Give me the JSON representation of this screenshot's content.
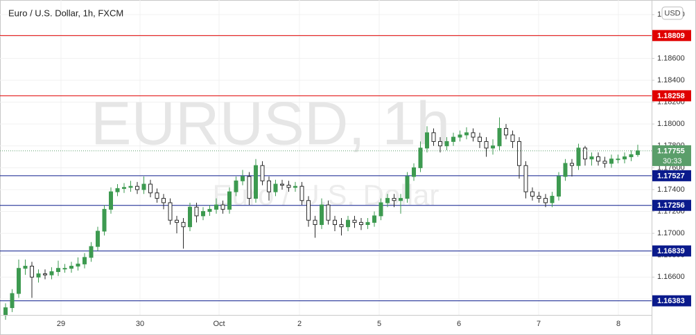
{
  "chart_data": {
    "type": "candlestick",
    "title": "Euro / U.S. Dollar, 1h, FXCM",
    "watermark": "EURUSD, 1h",
    "watermark_subtitle": "Euro / U.S. Dollar",
    "currency": "USD",
    "x_labels": [
      "29",
      "30",
      "Oct",
      "2",
      "5",
      "6",
      "7",
      "8"
    ],
    "open": [
      1.1625,
      1.1632,
      1.1645,
      1.1668,
      1.167,
      1.166,
      1.1663,
      1.1662,
      1.1665,
      1.1668,
      1.1668,
      1.167,
      1.1672,
      1.1678,
      1.1688,
      1.1702,
      1.1722,
      1.1738,
      1.1741,
      1.1742,
      1.1743,
      1.174,
      1.1745,
      1.1737,
      1.1732,
      1.1728,
      1.1712,
      1.171,
      1.1706,
      1.1724,
      1.1716,
      1.172,
      1.1722,
      1.1726,
      1.1722,
      1.1738,
      1.1748,
      1.1752,
      1.1732,
      1.1762,
      1.1748,
      1.1738,
      1.1745,
      1.1744,
      1.1742,
      1.1743,
      1.173,
      1.1712,
      1.1708,
      1.1726,
      1.1712,
      1.1708,
      1.1706,
      1.1712,
      1.171,
      1.1708,
      1.171,
      1.1716,
      1.1728,
      1.1732,
      1.173,
      1.1732,
      1.1752,
      1.176,
      1.1778,
      1.1792,
      1.1784,
      1.178,
      1.1784,
      1.1788,
      1.179,
      1.1792,
      1.1788,
      1.1784,
      1.1778,
      1.178,
      1.1796,
      1.179,
      1.1784,
      1.1762,
      1.1738,
      1.1734,
      1.1732,
      1.1728,
      1.1734,
      1.1752,
      1.1764,
      1.1762,
      1.1778,
      1.1768,
      1.177,
      1.1766,
      1.1764,
      1.1768,
      1.1768,
      1.177,
      1.1772
    ],
    "high": [
      1.1636,
      1.1649,
      1.1676,
      1.1676,
      1.1674,
      1.1667,
      1.1667,
      1.1669,
      1.1675,
      1.1672,
      1.1674,
      1.1678,
      1.1682,
      1.1692,
      1.1706,
      1.1726,
      1.1742,
      1.1745,
      1.1746,
      1.1748,
      1.1747,
      1.1752,
      1.1749,
      1.1741,
      1.1736,
      1.1732,
      1.1716,
      1.1714,
      1.1728,
      1.1728,
      1.1724,
      1.1726,
      1.1732,
      1.173,
      1.1742,
      1.1752,
      1.1758,
      1.1756,
      1.1768,
      1.1766,
      1.1752,
      1.1749,
      1.1749,
      1.1748,
      1.1747,
      1.1747,
      1.1734,
      1.1716,
      1.1732,
      1.173,
      1.1716,
      1.1714,
      1.1716,
      1.1716,
      1.1714,
      1.1714,
      1.172,
      1.1732,
      1.1736,
      1.1736,
      1.1736,
      1.1756,
      1.1764,
      1.1784,
      1.1798,
      1.1796,
      1.1788,
      1.1788,
      1.1792,
      1.1794,
      1.1797,
      1.1796,
      1.1792,
      1.1788,
      1.1786,
      1.1806,
      1.18,
      1.1794,
      1.1788,
      1.1766,
      1.1742,
      1.1738,
      1.1736,
      1.1738,
      1.1756,
      1.1768,
      1.1768,
      1.1782,
      1.178,
      1.1774,
      1.1774,
      1.177,
      1.1772,
      1.1772,
      1.1774,
      1.1776,
      1.1781
    ],
    "low": [
      1.1621,
      1.1628,
      1.1641,
      1.1662,
      1.1641,
      1.1655,
      1.1658,
      1.1658,
      1.1661,
      1.1664,
      1.1664,
      1.1666,
      1.1668,
      1.1674,
      1.1684,
      1.1698,
      1.1718,
      1.1734,
      1.1737,
      1.1738,
      1.1736,
      1.1736,
      1.1733,
      1.1728,
      1.1722,
      1.1708,
      1.17,
      1.1686,
      1.1702,
      1.171,
      1.1712,
      1.1716,
      1.1718,
      1.1718,
      1.1718,
      1.1734,
      1.1744,
      1.1726,
      1.1728,
      1.1744,
      1.173,
      1.1734,
      1.174,
      1.1738,
      1.1738,
      1.1726,
      1.1706,
      1.1696,
      1.1704,
      1.1708,
      1.1702,
      1.1698,
      1.1702,
      1.1705,
      1.1703,
      1.1704,
      1.1706,
      1.1712,
      1.1724,
      1.1724,
      1.1718,
      1.1728,
      1.1748,
      1.1756,
      1.1774,
      1.178,
      1.1774,
      1.1776,
      1.178,
      1.1784,
      1.1786,
      1.1784,
      1.1778,
      1.177,
      1.1772,
      1.1776,
      1.1786,
      1.1778,
      1.175,
      1.1732,
      1.173,
      1.1728,
      1.1724,
      1.1724,
      1.173,
      1.1748,
      1.1752,
      1.1758,
      1.1762,
      1.1762,
      1.1762,
      1.176,
      1.176,
      1.1764,
      1.1764,
      1.1766,
      1.177
    ],
    "close": [
      1.1632,
      1.1645,
      1.1668,
      1.167,
      1.166,
      1.1663,
      1.1662,
      1.1665,
      1.1668,
      1.1668,
      1.167,
      1.1672,
      1.1678,
      1.1688,
      1.1702,
      1.1722,
      1.1738,
      1.1741,
      1.1742,
      1.1743,
      1.174,
      1.1745,
      1.1737,
      1.1732,
      1.1728,
      1.1712,
      1.171,
      1.1706,
      1.1724,
      1.1716,
      1.172,
      1.1722,
      1.1726,
      1.1722,
      1.1738,
      1.1748,
      1.1752,
      1.1732,
      1.1762,
      1.1748,
      1.1738,
      1.1745,
      1.1744,
      1.1742,
      1.1743,
      1.173,
      1.1712,
      1.1708,
      1.1726,
      1.1712,
      1.1708,
      1.1706,
      1.1712,
      1.171,
      1.1708,
      1.171,
      1.1716,
      1.1728,
      1.1732,
      1.173,
      1.1732,
      1.1752,
      1.176,
      1.1778,
      1.1792,
      1.1784,
      1.178,
      1.1784,
      1.1788,
      1.179,
      1.1792,
      1.1788,
      1.1784,
      1.1778,
      1.178,
      1.1796,
      1.179,
      1.1784,
      1.1762,
      1.1738,
      1.1734,
      1.1732,
      1.1728,
      1.1734,
      1.1752,
      1.1764,
      1.1762,
      1.1778,
      1.1768,
      1.177,
      1.1766,
      1.1764,
      1.1768,
      1.1768,
      1.177,
      1.1772,
      1.17755
    ],
    "up_color": "#3d9a50",
    "down_color": "#2a2a2a",
    "ylim": [
      1.16254,
      1.19134
    ],
    "yticks": [
      {
        "value": 1.164,
        "label": "1.16400"
      },
      {
        "value": 1.166,
        "label": "1.16600"
      },
      {
        "value": 1.168,
        "label": "1.16800"
      },
      {
        "value": 1.17,
        "label": "1.17000"
      },
      {
        "value": 1.172,
        "label": "1.17200"
      },
      {
        "value": 1.174,
        "label": "1.17400"
      },
      {
        "value": 1.176,
        "label": "1.17600"
      },
      {
        "value": 1.178,
        "label": "1.17800"
      },
      {
        "value": 1.18,
        "label": "1.18000"
      },
      {
        "value": 1.182,
        "label": "1.18200"
      },
      {
        "value": 1.184,
        "label": "1.18400"
      },
      {
        "value": 1.186,
        "label": "1.18600"
      },
      {
        "value": 1.188,
        "label": "1.18800"
      },
      {
        "value": 1.19,
        "label": "1.19000"
      }
    ],
    "grid": true,
    "levels": [
      {
        "value": 1.18809,
        "color": "#e00000"
      },
      {
        "value": 1.18258,
        "color": "#e00000"
      },
      {
        "value": 1.17527,
        "color": "#0a1a8c"
      },
      {
        "value": 1.17256,
        "color": "#0a1a8c"
      },
      {
        "value": 1.16839,
        "color": "#0a1a8c"
      },
      {
        "value": 1.16383,
        "color": "#0a1a8c"
      }
    ],
    "last_price": {
      "value": 1.17755,
      "countdown": "30:33",
      "color": "#5a9e6a"
    }
  }
}
